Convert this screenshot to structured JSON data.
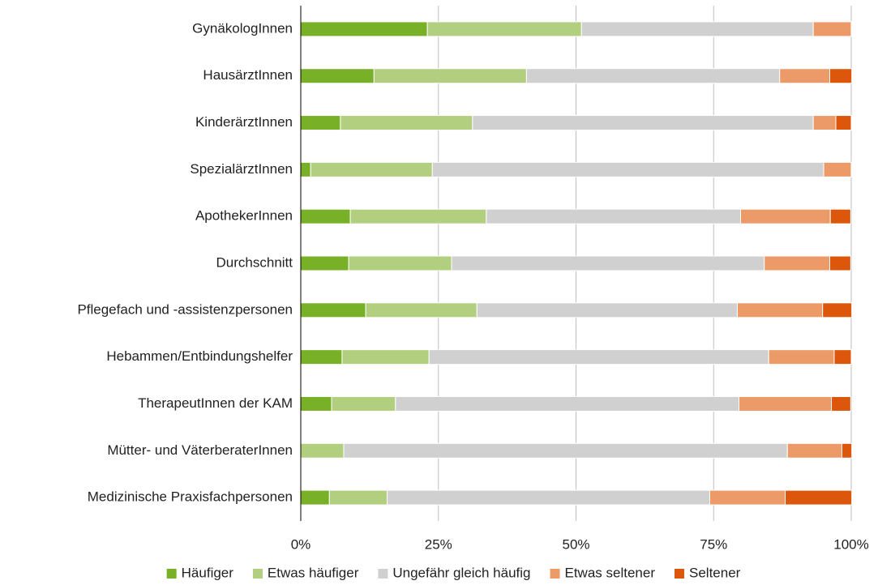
{
  "chart_data": {
    "type": "stacked_bar_horizontal",
    "categories": [
      "GynäkologInnen",
      "HausärztInnen",
      "KinderärztInnen",
      "SpezialärztInnen",
      "ApothekerInnen",
      "Durchschnitt",
      "Pflegefach und -assistenzpersonen",
      "Hebammen/Entbindungshelfer",
      "TherapeutInnen der KAM",
      "Mütter- und VäterberaterInnen",
      "Medizinische Praxisfachpersonen"
    ],
    "series": [
      {
        "name": "Häufiger",
        "color": "#78b027",
        "values": [
          23.0,
          13.3,
          7.2,
          1.8,
          9.0,
          8.7,
          11.8,
          7.5,
          5.6,
          0,
          5.2
        ]
      },
      {
        "name": "Etwas häufiger",
        "color": "#b1cf7e",
        "values": [
          28.0,
          27.7,
          24.0,
          22.1,
          24.7,
          18.7,
          20.2,
          15.8,
          11.6,
          7.8,
          10.5
        ]
      },
      {
        "name": "Ungefähr gleich häufig",
        "color": "#d0d0d0",
        "values": [
          42.1,
          46.0,
          61.9,
          71.1,
          46.2,
          56.8,
          47.3,
          61.7,
          62.4,
          80.6,
          58.6
        ]
      },
      {
        "name": "Etwas seltener",
        "color": "#eb9a68",
        "values": [
          6.9,
          9.1,
          4.1,
          5.0,
          16.3,
          11.9,
          15.5,
          11.9,
          16.8,
          9.9,
          13.7
        ]
      },
      {
        "name": "Seltener",
        "color": "#dc560b",
        "values": [
          0,
          4.0,
          2.8,
          0,
          3.7,
          3.8,
          5.3,
          3.1,
          3.5,
          1.8,
          12.1
        ]
      }
    ],
    "xlim": [
      0,
      100
    ],
    "xticks": [
      {
        "value": 0,
        "label": "0%"
      },
      {
        "value": 25,
        "label": "25%"
      },
      {
        "value": 50,
        "label": "50%"
      },
      {
        "value": 75,
        "label": "75%"
      },
      {
        "value": 100,
        "label": "100%"
      }
    ],
    "grid": true,
    "legend": "bottom"
  }
}
